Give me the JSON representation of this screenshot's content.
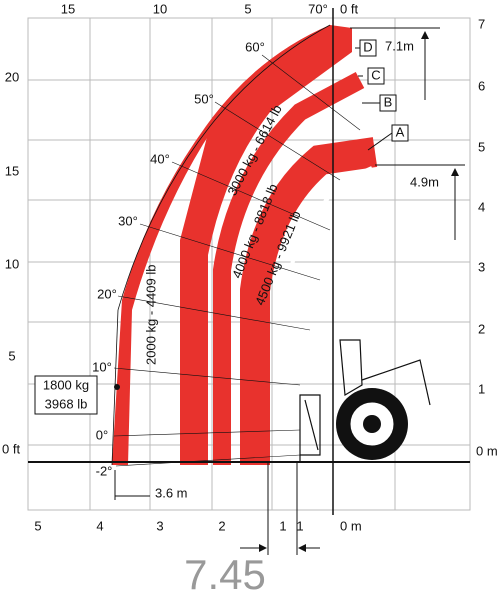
{
  "top_ft": [
    "15",
    "10",
    "5",
    "70°",
    "0 ft"
  ],
  "left_ft": [
    "20",
    "15",
    "10",
    "5",
    "0 ft"
  ],
  "right_m": [
    "7",
    "6",
    "5",
    "4",
    "3",
    "2",
    "1",
    "0 m"
  ],
  "bottom_m": [
    "5",
    "4",
    "3",
    "2",
    "1",
    "0 m"
  ],
  "angles": [
    "60°",
    "50°",
    "40°",
    "30°",
    "20°",
    "10°",
    "0°",
    "-2°"
  ],
  "boom_labels": [
    "D",
    "C",
    "B",
    "A"
  ],
  "loads": [
    "2000 kg - 4409 lb",
    "3000 kg - 6614 lb",
    "4000 kg - 8818 lb",
    "4500 kg - 9921 lb"
  ],
  "max_load": [
    "1800 kg",
    "3968 lb"
  ],
  "dimensions": [
    "7.1m",
    "4.9m",
    "3.6 m",
    "1"
  ],
  "model": "7.45"
}
